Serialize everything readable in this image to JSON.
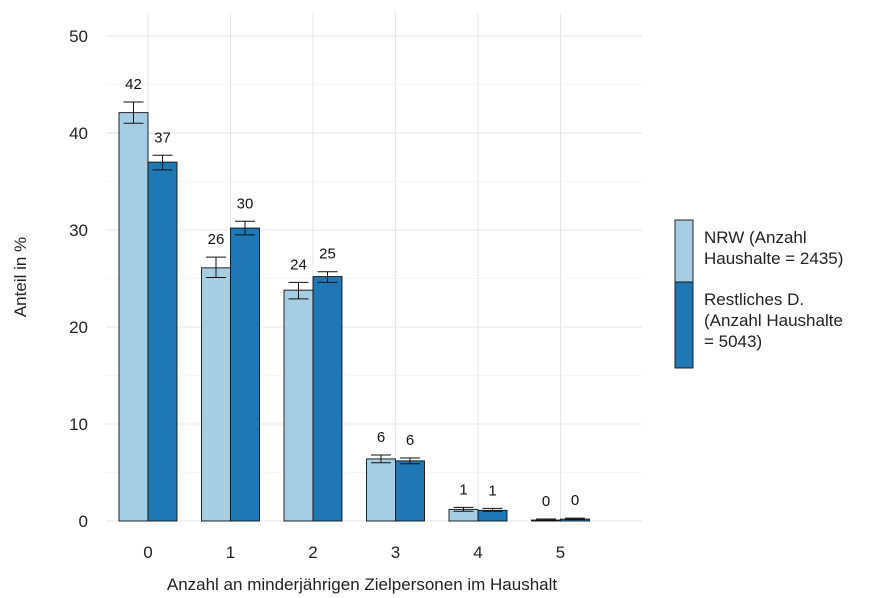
{
  "chart_data": {
    "type": "bar",
    "xlabel": "Anzahl an minderjährigen Zielpersonen im Haushalt",
    "ylabel": "Anteil in %",
    "categories": [
      "0",
      "1",
      "2",
      "3",
      "4",
      "5"
    ],
    "ylim": [
      0,
      50
    ],
    "yticks": [
      0,
      10,
      20,
      30,
      40,
      50
    ],
    "grid": true,
    "legend_position": "right",
    "series": [
      {
        "name": "NRW (Anzahl Haushalte = 2435)",
        "legend_lines": [
          "NRW (Anzahl",
          "Haushalte = 2435)"
        ],
        "color": "#a6cee3",
        "values": [
          42.1,
          26.1,
          23.8,
          6.4,
          1.2,
          0.1
        ],
        "error_low": [
          41.0,
          25.1,
          22.9,
          6.0,
          1.0,
          0.05
        ],
        "error_high": [
          43.2,
          27.2,
          24.6,
          6.8,
          1.4,
          0.2
        ],
        "labels": [
          "42",
          "26",
          "24",
          "6",
          "1",
          "0"
        ]
      },
      {
        "name": "Restliches D. (Anzahl Haushalte = 5043)",
        "legend_lines": [
          "Restliches D.",
          "(Anzahl Haushalte",
          "= 5043)"
        ],
        "color": "#1f78b4",
        "values": [
          37.0,
          30.2,
          25.2,
          6.2,
          1.1,
          0.2
        ],
        "error_low": [
          36.2,
          29.5,
          24.6,
          5.9,
          1.0,
          0.15
        ],
        "error_high": [
          37.7,
          30.9,
          25.7,
          6.5,
          1.3,
          0.3
        ],
        "labels": [
          "37",
          "30",
          "25",
          "6",
          "1",
          "0"
        ]
      }
    ]
  }
}
